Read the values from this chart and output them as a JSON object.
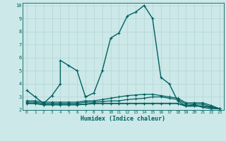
{
  "xlabel": "Humidex (Indice chaleur)",
  "xlim": [
    -0.5,
    23.5
  ],
  "ylim": [
    2,
    10.2
  ],
  "yticks": [
    2,
    3,
    4,
    5,
    6,
    7,
    8,
    9,
    10
  ],
  "xticks": [
    0,
    1,
    2,
    3,
    4,
    5,
    6,
    7,
    8,
    9,
    10,
    11,
    12,
    13,
    14,
    15,
    16,
    17,
    18,
    19,
    20,
    21,
    22,
    23
  ],
  "bg_color": "#cce8e8",
  "grid_color": "#b8d8d8",
  "line_color": "#006060",
  "lines": [
    {
      "x": [
        0,
        1,
        2,
        3,
        4,
        4,
        5,
        6,
        7,
        7,
        8,
        9,
        10,
        11,
        12,
        13,
        14,
        15,
        16,
        17,
        18,
        19,
        20,
        21,
        22,
        23
      ],
      "y": [
        3.5,
        3.0,
        2.5,
        3.1,
        4.0,
        5.8,
        5.4,
        5.0,
        3.0,
        3.0,
        3.3,
        5.0,
        7.5,
        7.9,
        9.2,
        9.5,
        10.0,
        9.0,
        4.5,
        4.0,
        2.7,
        2.3,
        2.4,
        2.2,
        2.1,
        2.1
      ],
      "lw": 1.0
    },
    {
      "x": [
        0,
        1,
        2,
        3,
        4,
        5,
        6,
        7,
        8,
        9,
        10,
        11,
        12,
        13,
        14,
        15,
        16,
        17,
        18,
        19,
        20,
        21,
        22,
        23
      ],
      "y": [
        2.5,
        2.5,
        2.4,
        2.4,
        2.4,
        2.4,
        2.4,
        2.45,
        2.5,
        2.5,
        2.5,
        2.5,
        2.5,
        2.5,
        2.5,
        2.5,
        2.5,
        2.5,
        2.5,
        2.3,
        2.3,
        2.3,
        2.2,
        2.1
      ],
      "lw": 1.3
    },
    {
      "x": [
        0,
        1,
        2,
        3,
        4,
        5,
        6,
        7,
        8,
        9,
        10,
        11,
        12,
        13,
        14,
        15,
        16,
        17,
        18,
        19,
        20,
        21,
        22,
        23
      ],
      "y": [
        2.6,
        2.6,
        2.5,
        2.5,
        2.5,
        2.5,
        2.5,
        2.6,
        2.6,
        2.65,
        2.7,
        2.7,
        2.8,
        2.85,
        2.9,
        3.0,
        3.0,
        2.9,
        2.8,
        2.45,
        2.45,
        2.45,
        2.25,
        2.1
      ],
      "lw": 0.9
    },
    {
      "x": [
        0,
        1,
        2,
        3,
        4,
        5,
        6,
        7,
        8,
        9,
        10,
        11,
        12,
        13,
        14,
        15,
        16,
        17,
        18,
        19,
        20,
        21,
        22,
        23
      ],
      "y": [
        2.7,
        2.7,
        2.6,
        2.6,
        2.6,
        2.6,
        2.6,
        2.7,
        2.7,
        2.8,
        2.9,
        3.0,
        3.1,
        3.15,
        3.2,
        3.2,
        3.1,
        3.0,
        2.9,
        2.55,
        2.55,
        2.55,
        2.35,
        2.1
      ],
      "lw": 0.9
    }
  ],
  "marker": "+",
  "markersize": 3.5,
  "marker_lw": 0.8
}
